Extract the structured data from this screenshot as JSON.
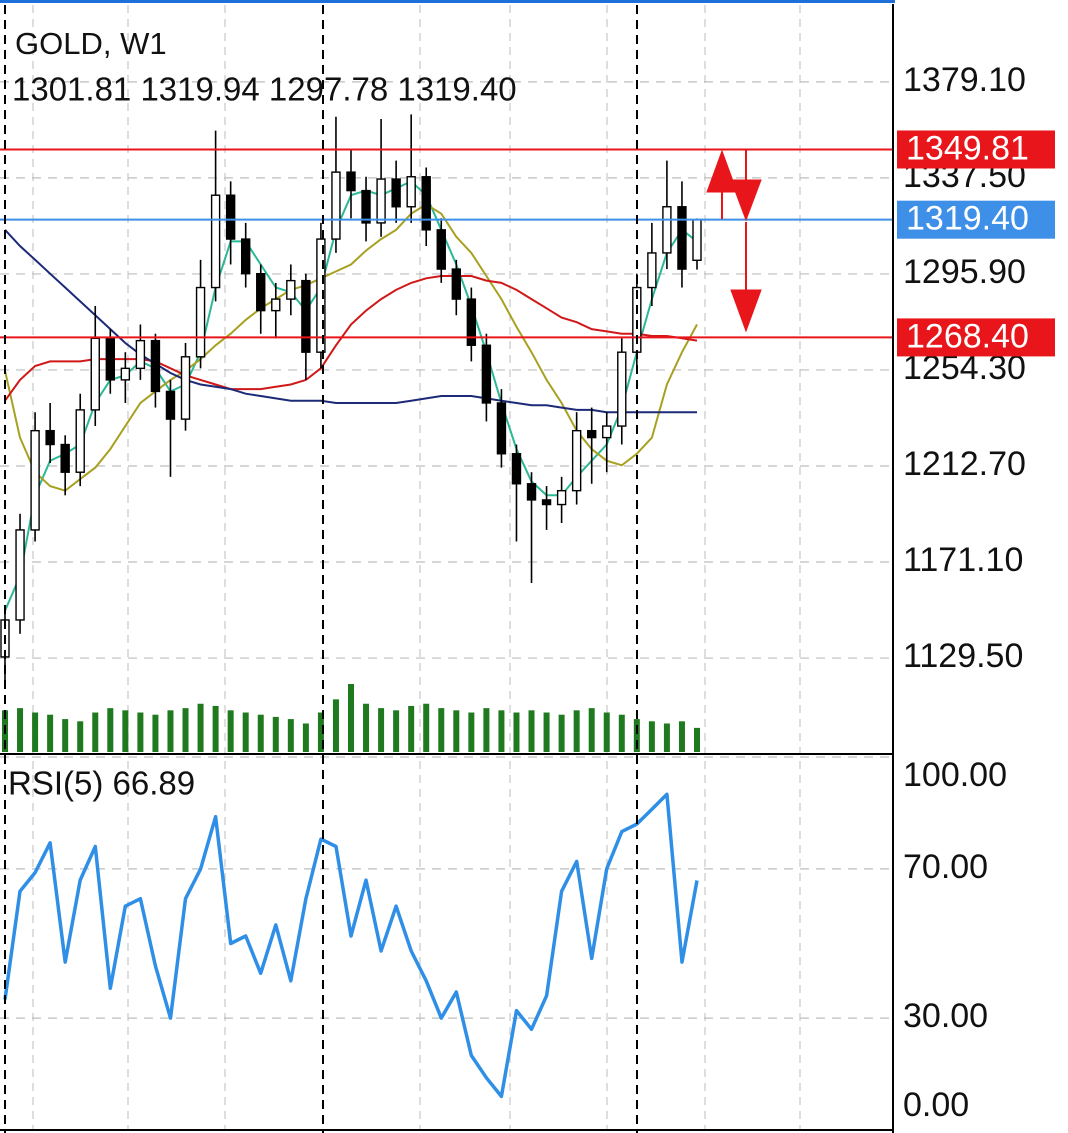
{
  "chart_data": [
    {
      "type": "candlestick",
      "title": "GOLD, W1",
      "subtitle": "1301.81 1319.94 1297.78 1319.40",
      "open": [
        1130,
        1146,
        1185,
        1228,
        1222,
        1210,
        1237,
        1268,
        1250,
        1255,
        1267,
        1245,
        1233,
        1260,
        1290,
        1330,
        1311,
        1296,
        1280,
        1285,
        1293,
        1262,
        1311,
        1340,
        1332,
        1318,
        1337,
        1325,
        1338,
        1315,
        1298,
        1285,
        1265,
        1240,
        1218,
        1205,
        1198,
        1196,
        1202,
        1228,
        1225,
        1230,
        1262,
        1290,
        1305,
        1325,
        1301.81
      ],
      "high": [
        1152,
        1192,
        1236,
        1240,
        1226,
        1244,
        1282,
        1272,
        1262,
        1274,
        1270,
        1250,
        1266,
        1302,
        1358,
        1336,
        1318,
        1300,
        1292,
        1300,
        1296,
        1318,
        1364,
        1350,
        1338,
        1363,
        1345,
        1365,
        1342,
        1320,
        1302,
        1290,
        1270,
        1246,
        1222,
        1210,
        1204,
        1208,
        1236,
        1238,
        1236,
        1268,
        1296,
        1318,
        1345,
        1336,
        1319.94
      ],
      "low": [
        1118,
        1140,
        1180,
        1214,
        1200,
        1204,
        1230,
        1244,
        1240,
        1250,
        1238,
        1208,
        1228,
        1255,
        1284,
        1300,
        1290,
        1270,
        1268,
        1278,
        1250,
        1255,
        1305,
        1320,
        1310,
        1312,
        1318,
        1318,
        1308,
        1292,
        1278,
        1258,
        1232,
        1212,
        1180,
        1162,
        1185,
        1188,
        1196,
        1205,
        1210,
        1222,
        1256,
        1282,
        1298,
        1290,
        1297.78
      ],
      "close": [
        1146,
        1185,
        1228,
        1222,
        1210,
        1237,
        1268,
        1250,
        1255,
        1267,
        1245,
        1233,
        1260,
        1290,
        1330,
        1311,
        1296,
        1280,
        1285,
        1293,
        1262,
        1311,
        1340,
        1332,
        1318,
        1337,
        1325,
        1338,
        1315,
        1298,
        1285,
        1265,
        1240,
        1218,
        1205,
        1198,
        1196,
        1202,
        1228,
        1225,
        1230,
        1262,
        1290,
        1305,
        1325,
        1298,
        1319.4
      ],
      "candle_color": "#000000",
      "series": [
        {
          "color": "#2bb896",
          "values": [
            1150,
            1165,
            1200,
            1215,
            1218,
            1222,
            1240,
            1250,
            1252,
            1258,
            1255,
            1245,
            1248,
            1262,
            1290,
            1310,
            1310,
            1300,
            1290,
            1288,
            1280,
            1290,
            1315,
            1330,
            1332,
            1330,
            1333,
            1336,
            1330,
            1315,
            1300,
            1282,
            1262,
            1240,
            1220,
            1206,
            1200,
            1200,
            1208,
            1215,
            1222,
            1238,
            1262,
            1285,
            1305,
            1315,
            1310
          ]
        },
        {
          "color": "#a8a020",
          "values": [
            1254,
            1225,
            1210,
            1204,
            1202,
            1207,
            1212,
            1220,
            1230,
            1240,
            1245,
            1250,
            1254,
            1259,
            1265,
            1270,
            1276,
            1281,
            1285,
            1289,
            1291,
            1294,
            1297,
            1300,
            1306,
            1311,
            1315,
            1322,
            1326,
            1322,
            1312,
            1305,
            1295,
            1285,
            1273,
            1262,
            1250,
            1240,
            1228,
            1220,
            1215,
            1213,
            1218,
            1225,
            1248,
            1262,
            1274
          ]
        },
        {
          "color": "#d01818",
          "values": [
            1241,
            1250,
            1256,
            1258,
            1258,
            1258,
            1259,
            1259,
            1259,
            1259,
            1258,
            1255,
            1252,
            1250,
            1248,
            1246,
            1246,
            1246,
            1247,
            1248,
            1250,
            1255,
            1265,
            1274,
            1280,
            1285,
            1289,
            1292,
            1294,
            1295,
            1295,
            1295,
            1293,
            1292,
            1289,
            1285,
            1281,
            1277,
            1275,
            1272,
            1271,
            1270,
            1270,
            1269,
            1269,
            1268,
            1267
          ]
        },
        {
          "color": "#1c2a78",
          "values": [
            1315,
            1308,
            1302,
            1296,
            1290,
            1284,
            1278,
            1272,
            1266,
            1261,
            1257,
            1253,
            1250,
            1248,
            1247,
            1246,
            1244,
            1243,
            1242,
            1241,
            1241,
            1241,
            1240,
            1240,
            1240,
            1240,
            1240,
            1241,
            1242,
            1243,
            1243,
            1243,
            1242,
            1241,
            1240,
            1239,
            1239,
            1238,
            1237,
            1237,
            1236,
            1236,
            1236,
            1236,
            1236,
            1236,
            1236
          ]
        }
      ],
      "volume": [
        38,
        40,
        36,
        34,
        30,
        28,
        36,
        40,
        38,
        36,
        34,
        38,
        40,
        44,
        42,
        38,
        36,
        34,
        32,
        30,
        26,
        36,
        48,
        62,
        44,
        40,
        38,
        42,
        44,
        40,
        38,
        36,
        40,
        38,
        36,
        38,
        36,
        34,
        38,
        40,
        36,
        34,
        30,
        28,
        26,
        28,
        22
      ],
      "volume_color": "#1f7a1f",
      "levels": [
        {
          "value": 1349.81,
          "label": "1349.81",
          "color": "#e8161b"
        },
        {
          "value": 1319.4,
          "label": "1319.40",
          "color": "#3d8fe8"
        },
        {
          "value": 1268.4,
          "label": "1268.40",
          "color": "#e8161b"
        }
      ],
      "ylim": [
        1088.8,
        1412.4
      ],
      "yticks": [
        {
          "value": 1379.1,
          "label": "1379.10"
        },
        {
          "value": 1337.5,
          "label": "1337.50"
        },
        {
          "value": 1295.9,
          "label": "1295.90"
        },
        {
          "value": 1254.3,
          "label": "1254.30"
        },
        {
          "value": 1212.7,
          "label": "1212.70"
        },
        {
          "value": 1171.1,
          "label": "1171.10"
        },
        {
          "value": 1129.5,
          "label": "1129.50"
        }
      ],
      "grid": true
    },
    {
      "type": "line",
      "title": "RSI(5) 66.89",
      "values": [
        35,
        64,
        69,
        77,
        45,
        67,
        76,
        38,
        60,
        62,
        44,
        30,
        62,
        70,
        84,
        50,
        52,
        42,
        55,
        40,
        62,
        78,
        76,
        52,
        67,
        48,
        60,
        48,
        40,
        30,
        37,
        20,
        14,
        9,
        32,
        27,
        36,
        64,
        72,
        46,
        70,
        80,
        82,
        86,
        90,
        45,
        66.89
      ],
      "color": "#2f8fe6",
      "ylim": [
        0,
        100
      ],
      "yticks": [
        {
          "value": 100,
          "label": "100.00"
        },
        {
          "value": 70,
          "label": "70.00"
        },
        {
          "value": 30,
          "label": "30.00"
        },
        {
          "value": 0,
          "label": "0.00"
        }
      ],
      "grid": true
    }
  ]
}
